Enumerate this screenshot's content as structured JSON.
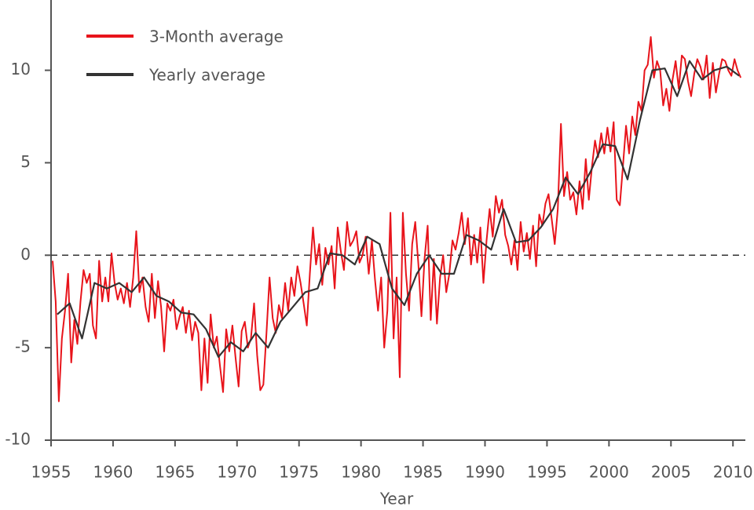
{
  "chart_data": {
    "type": "line",
    "x_label": "Year",
    "xlim": [
      1955,
      2011
    ],
    "ylim": [
      -10,
      13.8
    ],
    "xticks": [
      1955,
      1960,
      1965,
      1970,
      1975,
      1980,
      1985,
      1990,
      1995,
      2000,
      2005,
      2010
    ],
    "yticks": [
      -10,
      -5,
      0,
      5,
      10
    ],
    "hline": 0,
    "legend": "upper left",
    "series": [
      {
        "name": "3-Month average",
        "color": "#e8141b",
        "x": [
          1955.125,
          1955.375,
          1955.625,
          1955.875,
          1956.125,
          1956.375,
          1956.625,
          1956.875,
          1957.125,
          1957.375,
          1957.625,
          1957.875,
          1958.125,
          1958.375,
          1958.625,
          1958.875,
          1959.125,
          1959.375,
          1959.625,
          1959.875,
          1960.125,
          1960.375,
          1960.625,
          1960.875,
          1961.125,
          1961.375,
          1961.625,
          1961.875,
          1962.125,
          1962.375,
          1962.625,
          1962.875,
          1963.125,
          1963.375,
          1963.625,
          1963.875,
          1964.125,
          1964.375,
          1964.625,
          1964.875,
          1965.125,
          1965.375,
          1965.625,
          1965.875,
          1966.125,
          1966.375,
          1966.625,
          1966.875,
          1967.125,
          1967.375,
          1967.625,
          1967.875,
          1968.125,
          1968.375,
          1968.625,
          1968.875,
          1969.125,
          1969.375,
          1969.625,
          1969.875,
          1970.125,
          1970.375,
          1970.625,
          1970.875,
          1971.125,
          1971.375,
          1971.625,
          1971.875,
          1972.125,
          1972.375,
          1972.625,
          1972.875,
          1973.125,
          1973.375,
          1973.625,
          1973.875,
          1974.125,
          1974.375,
          1974.625,
          1974.875,
          1975.125,
          1975.375,
          1975.625,
          1975.875,
          1976.125,
          1976.375,
          1976.625,
          1976.875,
          1977.125,
          1977.375,
          1977.625,
          1977.875,
          1978.125,
          1978.375,
          1978.625,
          1978.875,
          1979.125,
          1979.375,
          1979.625,
          1979.875,
          1980.125,
          1980.375,
          1980.625,
          1980.875,
          1981.125,
          1981.375,
          1981.625,
          1981.875,
          1982.125,
          1982.375,
          1982.625,
          1982.875,
          1983.125,
          1983.375,
          1983.625,
          1983.875,
          1984.125,
          1984.375,
          1984.625,
          1984.875,
          1985.125,
          1985.375,
          1985.625,
          1985.875,
          1986.125,
          1986.375,
          1986.625,
          1986.875,
          1987.125,
          1987.375,
          1987.625,
          1987.875,
          1988.125,
          1988.375,
          1988.625,
          1988.875,
          1989.125,
          1989.375,
          1989.625,
          1989.875,
          1990.125,
          1990.375,
          1990.625,
          1990.875,
          1991.125,
          1991.375,
          1991.625,
          1991.875,
          1992.125,
          1992.375,
          1992.625,
          1992.875,
          1993.125,
          1993.375,
          1993.625,
          1993.875,
          1994.125,
          1994.375,
          1994.625,
          1994.875,
          1995.125,
          1995.375,
          1995.625,
          1995.875,
          1996.125,
          1996.375,
          1996.625,
          1996.875,
          1997.125,
          1997.375,
          1997.625,
          1997.875,
          1998.125,
          1998.375,
          1998.625,
          1998.875,
          1999.125,
          1999.375,
          1999.625,
          1999.875,
          2000.125,
          2000.375,
          2000.625,
          2000.875,
          2001.125,
          2001.375,
          2001.625,
          2001.875,
          2002.125,
          2002.375,
          2002.625,
          2002.875,
          2003.125,
          2003.375,
          2003.625,
          2003.875,
          2004.125,
          2004.375,
          2004.625,
          2004.875,
          2005.125,
          2005.375,
          2005.625,
          2005.875,
          2006.125,
          2006.375,
          2006.625,
          2006.875,
          2007.125,
          2007.375,
          2007.625,
          2007.875,
          2008.125,
          2008.375,
          2008.625,
          2008.875,
          2009.125,
          2009.375,
          2009.625,
          2009.875,
          2010.125,
          2010.375,
          2010.625
        ],
        "values": [
          -0.3,
          -2.5,
          -7.9,
          -4.5,
          -3.0,
          -1.0,
          -5.8,
          -3.5,
          -4.8,
          -2.5,
          -0.8,
          -1.5,
          -1.0,
          -3.8,
          -4.5,
          -0.3,
          -2.5,
          -1.2,
          -2.5,
          0.1,
          -1.5,
          -2.4,
          -1.8,
          -2.6,
          -1.5,
          -2.8,
          -1.2,
          1.3,
          -2.0,
          -1.2,
          -2.8,
          -3.6,
          -1.0,
          -3.4,
          -1.4,
          -2.8,
          -5.2,
          -2.6,
          -3.0,
          -2.4,
          -4.0,
          -3.3,
          -2.8,
          -4.2,
          -3.0,
          -4.6,
          -3.6,
          -4.2,
          -7.3,
          -4.5,
          -6.9,
          -3.2,
          -5.0,
          -4.4,
          -6.0,
          -7.4,
          -4.0,
          -5.2,
          -3.8,
          -5.5,
          -7.1,
          -4.1,
          -3.6,
          -5.0,
          -4.5,
          -2.6,
          -5.4,
          -7.3,
          -7.0,
          -4.2,
          -1.2,
          -3.4,
          -4.2,
          -2.7,
          -3.4,
          -1.5,
          -3.0,
          -1.2,
          -2.2,
          -0.6,
          -1.5,
          -2.6,
          -3.8,
          -1.0,
          1.5,
          -0.5,
          0.6,
          -1.6,
          0.4,
          -0.5,
          0.5,
          -1.8,
          1.5,
          0.2,
          -0.8,
          1.8,
          0.5,
          0.8,
          1.3,
          -0.4,
          0.0,
          1.0,
          -1.0,
          0.8,
          -1.3,
          -3.0,
          -1.2,
          -5.0,
          -3.0,
          2.3,
          -4.5,
          -1.2,
          -6.6,
          2.3,
          -1.0,
          -3.0,
          0.6,
          1.8,
          -0.5,
          -3.3,
          -0.2,
          1.6,
          -3.5,
          -0.2,
          -3.7,
          -1.2,
          0.0,
          -2.0,
          -1.0,
          0.8,
          0.3,
          1.2,
          2.3,
          0.6,
          2.0,
          -0.5,
          1.1,
          -0.4,
          1.5,
          -1.5,
          0.8,
          2.5,
          1.0,
          3.2,
          2.3,
          3.0,
          1.1,
          0.5,
          -0.5,
          0.8,
          -0.8,
          1.8,
          0.2,
          1.2,
          -0.2,
          1.6,
          -0.6,
          2.2,
          1.6,
          2.8,
          3.3,
          2.0,
          0.6,
          2.5,
          7.1,
          3.2,
          4.5,
          3.0,
          3.4,
          2.2,
          4.0,
          2.5,
          5.2,
          3.0,
          4.8,
          6.2,
          5.3,
          6.6,
          5.5,
          6.9,
          5.6,
          7.2,
          3.0,
          2.7,
          4.8,
          7.0,
          5.5,
          7.5,
          6.5,
          8.3,
          7.8,
          10.0,
          10.3,
          11.8,
          9.6,
          10.5,
          10.0,
          8.1,
          9.0,
          7.8,
          9.5,
          10.5,
          9.0,
          10.8,
          10.6,
          9.4,
          8.6,
          9.8,
          10.6,
          10.2,
          9.5,
          10.8,
          8.5,
          10.4,
          8.8,
          9.8,
          10.6,
          10.5,
          10.0,
          9.7,
          10.6,
          10.0,
          9.6
        ]
      },
      {
        "name": "Yearly average",
        "color": "#333333",
        "x": [
          1955.5,
          1956.5,
          1957.5,
          1958.5,
          1959.5,
          1960.5,
          1961.5,
          1962.5,
          1963.5,
          1964.5,
          1965.5,
          1966.5,
          1967.5,
          1968.5,
          1969.5,
          1970.5,
          1971.5,
          1972.5,
          1973.5,
          1974.5,
          1975.5,
          1976.5,
          1977.5,
          1978.5,
          1979.5,
          1980.5,
          1981.5,
          1982.5,
          1983.5,
          1984.5,
          1985.5,
          1986.5,
          1987.5,
          1988.5,
          1989.5,
          1990.5,
          1991.5,
          1992.5,
          1993.5,
          1994.5,
          1995.5,
          1996.5,
          1997.5,
          1998.5,
          1999.5,
          2000.5,
          2001.5,
          2002.5,
          2003.5,
          2004.5,
          2005.5,
          2006.5,
          2007.5,
          2008.5,
          2009.5,
          2010.5
        ],
        "values": [
          -3.2,
          -2.6,
          -4.5,
          -1.5,
          -1.8,
          -1.5,
          -2.0,
          -1.2,
          -2.2,
          -2.5,
          -3.1,
          -3.2,
          -4.0,
          -5.5,
          -4.7,
          -5.2,
          -4.2,
          -5.0,
          -3.6,
          -2.8,
          -2.0,
          -1.8,
          0.1,
          0.0,
          -0.5,
          1.0,
          0.6,
          -1.8,
          -2.7,
          -1.0,
          0.0,
          -1.0,
          -1.0,
          1.1,
          0.8,
          0.3,
          2.5,
          0.7,
          0.8,
          1.5,
          2.5,
          4.2,
          3.3,
          4.5,
          6.0,
          5.9,
          4.1,
          7.3,
          10.0,
          10.1,
          8.6,
          10.5,
          9.5,
          10.0,
          10.2,
          9.7
        ]
      }
    ]
  }
}
